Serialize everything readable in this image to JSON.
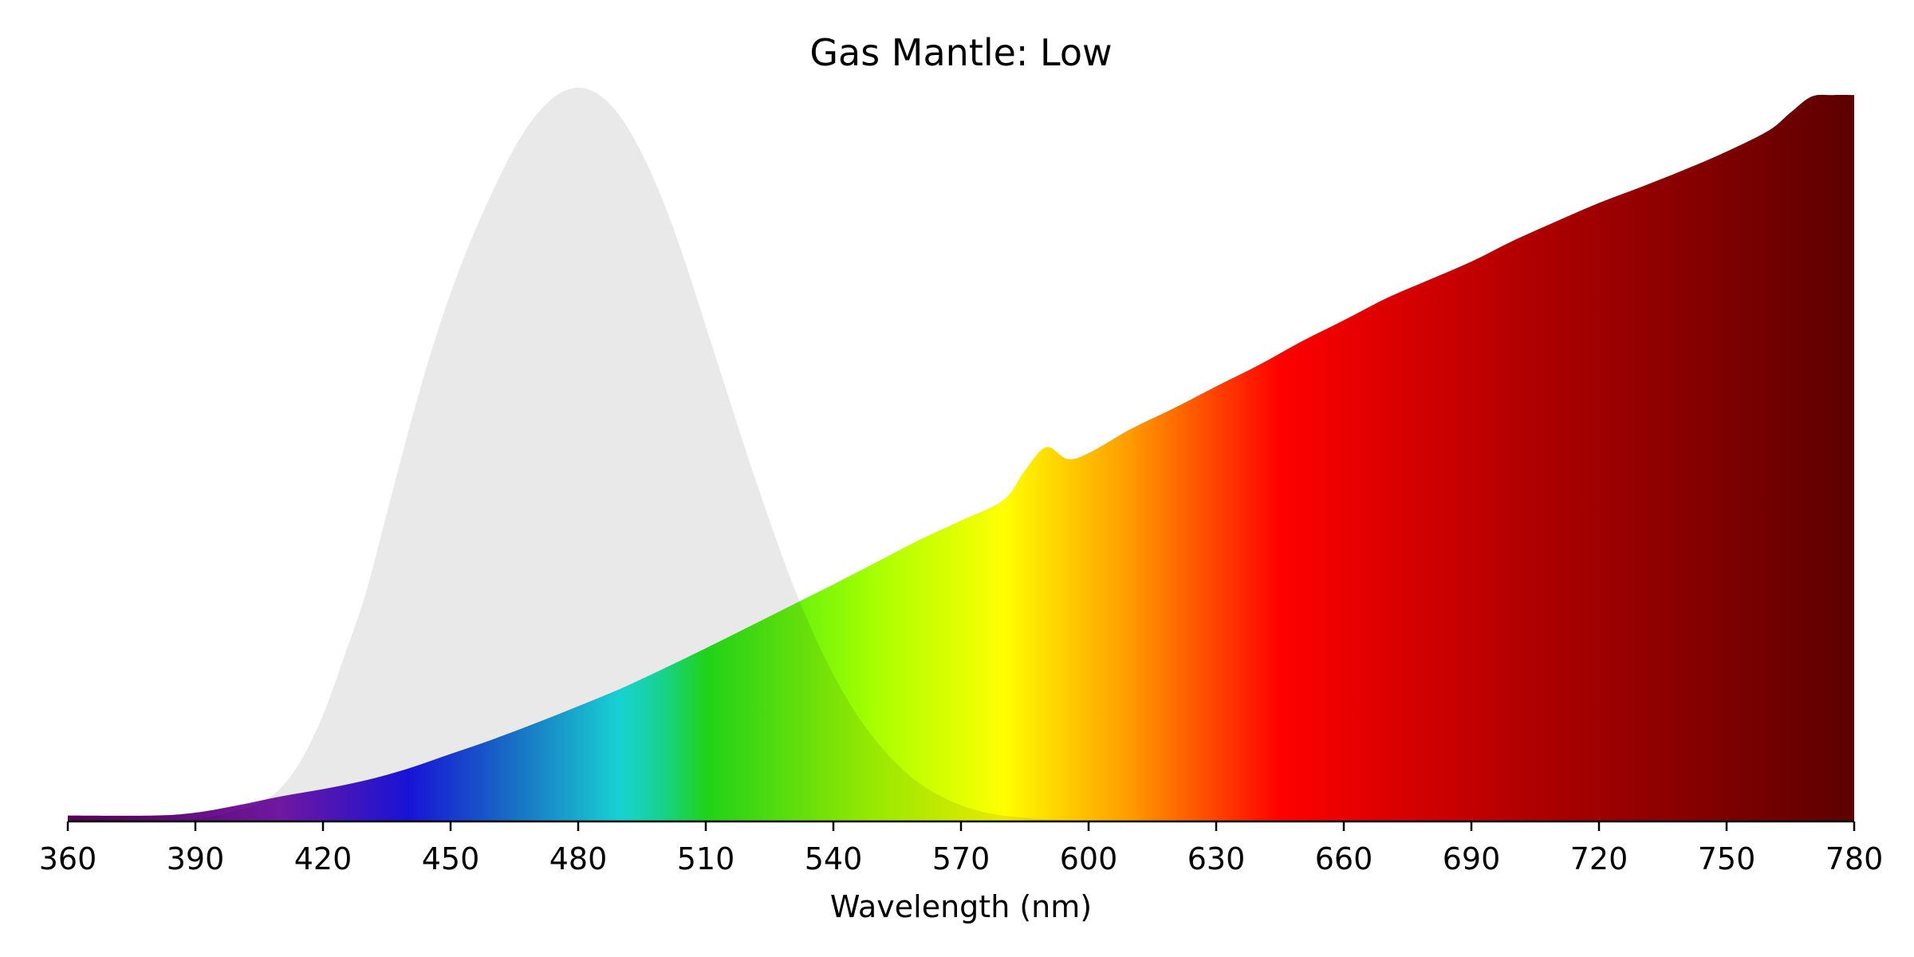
{
  "chart_data": {
    "type": "area",
    "title": "Gas Mantle: Low",
    "xlabel": "Wavelength (nm)",
    "ylabel": "",
    "xlim": [
      360,
      780
    ],
    "ylim": [
      0,
      1
    ],
    "grid": false,
    "legend": "none",
    "x_ticks": [
      360,
      390,
      420,
      450,
      480,
      510,
      540,
      570,
      600,
      630,
      660,
      690,
      720,
      750,
      780
    ],
    "colors": {
      "sensitivity_fill": "#e5e5e5",
      "axis": "#000000",
      "spectrum_stops": [
        {
          "wavelength": 360,
          "color": "#5a005a"
        },
        {
          "wavelength": 380,
          "color": "#5d0b6e"
        },
        {
          "wavelength": 410,
          "color": "#7a1ab0"
        },
        {
          "wavelength": 440,
          "color": "#1a14ea"
        },
        {
          "wavelength": 465,
          "color": "#1a7ad6"
        },
        {
          "wavelength": 490,
          "color": "#1ae6e6"
        },
        {
          "wavelength": 500,
          "color": "#19e69a"
        },
        {
          "wavelength": 510,
          "color": "#22e61a"
        },
        {
          "wavelength": 550,
          "color": "#a8ff00"
        },
        {
          "wavelength": 580,
          "color": "#ffff00"
        },
        {
          "wavelength": 610,
          "color": "#ff9a00"
        },
        {
          "wavelength": 645,
          "color": "#ff0000"
        },
        {
          "wavelength": 700,
          "color": "#b40000"
        },
        {
          "wavelength": 740,
          "color": "#880000"
        },
        {
          "wavelength": 780,
          "color": "#5c0000"
        }
      ]
    },
    "series": [
      {
        "id": "sensitivity",
        "x": [
          360,
          380,
          390,
          395,
          400,
          405,
          410,
          415,
          420,
          425,
          430,
          435,
          440,
          445,
          450,
          455,
          460,
          465,
          470,
          475,
          480,
          485,
          490,
          495,
          500,
          505,
          510,
          515,
          520,
          525,
          530,
          535,
          540,
          545,
          550,
          555,
          560,
          565,
          570,
          575,
          580,
          585,
          590,
          600,
          620,
          780
        ],
        "values": [
          0.0,
          0.0,
          0.004,
          0.008,
          0.015,
          0.025,
          0.045,
          0.085,
          0.145,
          0.225,
          0.31,
          0.42,
          0.53,
          0.632,
          0.72,
          0.795,
          0.86,
          0.918,
          0.962,
          0.99,
          1.0,
          0.99,
          0.96,
          0.91,
          0.845,
          0.765,
          0.675,
          0.585,
          0.495,
          0.41,
          0.33,
          0.26,
          0.2,
          0.15,
          0.11,
          0.078,
          0.053,
          0.035,
          0.022,
          0.013,
          0.008,
          0.005,
          0.003,
          0.001,
          0.0,
          0.0
        ]
      },
      {
        "id": "spectrum",
        "x": [
          360,
          380,
          390,
          400,
          410,
          420,
          430,
          440,
          450,
          460,
          470,
          480,
          490,
          500,
          510,
          520,
          530,
          540,
          550,
          560,
          570,
          580,
          585,
          590,
          595,
          600,
          610,
          620,
          630,
          640,
          650,
          660,
          670,
          680,
          690,
          700,
          710,
          720,
          730,
          740,
          750,
          760,
          765,
          770,
          775,
          780
        ],
        "values": [
          0.008,
          0.008,
          0.012,
          0.022,
          0.034,
          0.044,
          0.056,
          0.072,
          0.092,
          0.112,
          0.134,
          0.157,
          0.181,
          0.208,
          0.236,
          0.265,
          0.294,
          0.323,
          0.353,
          0.383,
          0.41,
          0.438,
          0.478,
          0.51,
          0.494,
          0.502,
          0.535,
          0.563,
          0.593,
          0.622,
          0.654,
          0.683,
          0.713,
          0.738,
          0.763,
          0.792,
          0.818,
          0.843,
          0.865,
          0.888,
          0.913,
          0.942,
          0.966,
          0.988,
          0.99,
          0.99
        ]
      }
    ]
  }
}
